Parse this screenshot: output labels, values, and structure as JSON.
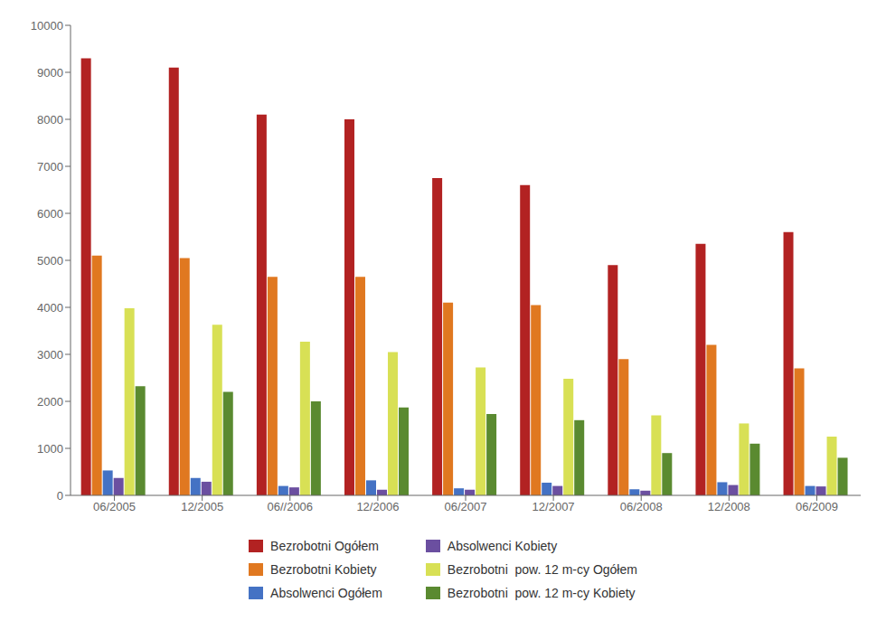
{
  "chart_data": {
    "type": "bar",
    "categories": [
      "06/2005",
      "12/2005",
      "06//2006",
      "12/2006",
      "06/2007",
      "12/2007",
      "06/2008",
      "12/2008",
      "06/2009"
    ],
    "series": [
      {
        "name": "Bezrobotni Ogółem",
        "color": "#B22222",
        "values": [
          9300,
          9100,
          8100,
          8000,
          6750,
          6600,
          4900,
          5350,
          5600
        ]
      },
      {
        "name": "Bezrobotni Kobiety",
        "color": "#E07820",
        "values": [
          5100,
          5050,
          4650,
          4650,
          4100,
          4050,
          2900,
          3200,
          2700
        ]
      },
      {
        "name": "Absolwenci Ogółem",
        "color": "#4472C4",
        "values": [
          530,
          370,
          200,
          320,
          150,
          270,
          130,
          280,
          200
        ]
      },
      {
        "name": "Absolwenci Kobiety",
        "color": "#6B4FA0",
        "values": [
          370,
          290,
          170,
          120,
          120,
          200,
          100,
          220,
          190
        ]
      },
      {
        "name": "Bezrobotni  pow. 12 m-cy Ogółem",
        "color": "#D8E055",
        "values": [
          3980,
          3630,
          3270,
          3050,
          2720,
          2480,
          1700,
          1530,
          1250
        ]
      },
      {
        "name": "Bezrobotni  pow. 12 m-cy Kobiety",
        "color": "#5A8A30",
        "values": [
          2320,
          2200,
          2000,
          1870,
          1730,
          1600,
          900,
          1100,
          800
        ]
      }
    ],
    "ylim": [
      0,
      10000
    ],
    "yticks": [
      0,
      1000,
      2000,
      3000,
      4000,
      5000,
      6000,
      7000,
      8000,
      9000,
      10000
    ],
    "grid": false,
    "legend": "bottom"
  }
}
